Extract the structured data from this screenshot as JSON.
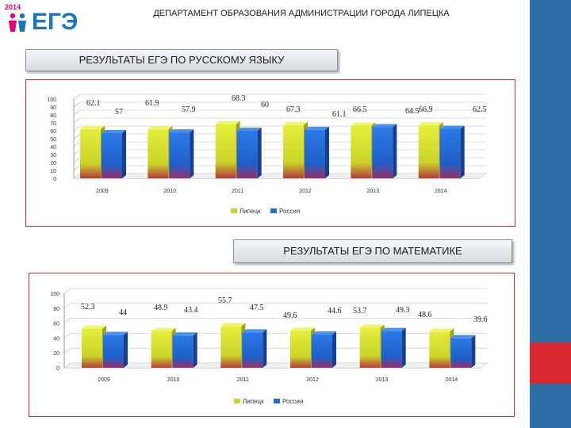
{
  "header": {
    "logo_year": "2014",
    "logo_text": "ЕГЭ",
    "title": "ДЕПАРТАМЕНТ ОБРАЗОВАНИЯ АДМИНИСТРАЦИИ ГОРОДА ЛИПЕЦКА"
  },
  "colors": {
    "lipetsk": "#c9d42a",
    "russia": "#1f6fd6",
    "frame": "#d9282f",
    "sidebar": "#2e6fa8"
  },
  "chart_data": [
    {
      "type": "bar",
      "title": "РЕЗУЛЬТАТЫ ЕГЭ ПО РУССКОМУ ЯЗЫКУ",
      "categories": [
        "2009",
        "2010",
        "2011",
        "2012",
        "2013",
        "2014"
      ],
      "series": [
        {
          "name": "Липецк",
          "values": [
            62.1,
            61.9,
            68.3,
            67.3,
            66.5,
            66.9
          ]
        },
        {
          "name": "Россия",
          "values": [
            57,
            57.9,
            60,
            61.1,
            64.5,
            62.5
          ]
        }
      ],
      "y_ticks": [
        "0",
        "10",
        "20",
        "30",
        "40",
        "50",
        "60",
        "70",
        "80",
        "90",
        "100"
      ],
      "ylim": [
        0,
        100
      ],
      "grid": true,
      "legend": "bottom"
    },
    {
      "type": "bar",
      "title": "РЕЗУЛЬТАТЫ ЕГЭ ПО МАТЕМАТИКЕ",
      "categories": [
        "2009",
        "2010",
        "2011",
        "2012",
        "2013",
        "2014"
      ],
      "series": [
        {
          "name": "Липецк",
          "values": [
            52.3,
            48.9,
            55.7,
            49.6,
            53.7,
            48.6
          ]
        },
        {
          "name": "Россия",
          "values": [
            44,
            43.4,
            47.5,
            44.6,
            49.3,
            39.6
          ]
        }
      ],
      "y_ticks": [
        "0",
        "20",
        "40",
        "60",
        "80",
        "100"
      ],
      "ylim": [
        0,
        100
      ],
      "grid": true,
      "legend": "bottom"
    }
  ]
}
